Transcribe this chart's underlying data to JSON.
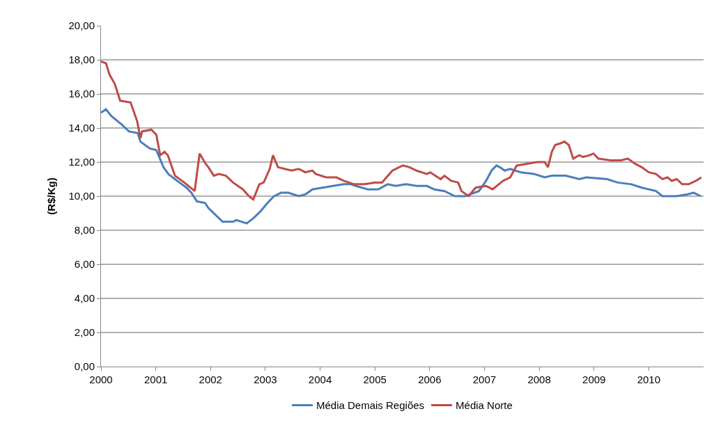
{
  "chart_data": {
    "type": "line",
    "ylabel": "(R$/Kg)",
    "x": [
      2000,
      2000.09,
      2000.19,
      2000.38,
      2000.51,
      2000.67,
      2000.72,
      2000.89,
      2001.01,
      2001.14,
      2001.23,
      2001.39,
      2001.56,
      2001.65,
      2001.75,
      2001.9,
      2001.96,
      2002.09,
      2002.22,
      2002.41,
      2002.47,
      2002.66,
      2002.78,
      2002.91,
      2003.04,
      2003.16,
      2003.29,
      2003.42,
      2003.61,
      2003.73,
      2003.86,
      2004.05,
      2004.24,
      2004.43,
      2004.56,
      2004.65,
      2004.87,
      2005.06,
      2005.23,
      2005.38,
      2005.57,
      2005.76,
      2005.95,
      2006.08,
      2006.27,
      2006.46,
      2006.65,
      2006.9,
      2007.03,
      2007.13,
      2007.22,
      2007.28,
      2007.37,
      2007.47,
      2007.66,
      2007.91,
      2008.1,
      2008.23,
      2008.48,
      2008.61,
      2008.73,
      2008.86,
      2009.24,
      2009.43,
      2009.68,
      2009.87,
      2010.13,
      2010.25,
      2010.51,
      2010.7,
      2010.82,
      2010.95
    ],
    "series": [
      {
        "name": "Média Demais Regiões",
        "color": "#4a7ebb",
        "values": [
          14.9,
          15.1,
          14.7,
          14.2,
          13.8,
          13.7,
          13.2,
          12.8,
          12.7,
          11.7,
          11.3,
          10.9,
          10.5,
          10.2,
          9.7,
          9.6,
          9.3,
          8.9,
          8.5,
          8.5,
          8.6,
          8.4,
          8.7,
          9.1,
          9.6,
          10.0,
          10.2,
          10.2,
          10.0,
          10.1,
          10.4,
          10.5,
          10.6,
          10.7,
          10.7,
          10.6,
          10.4,
          10.4,
          10.7,
          10.6,
          10.7,
          10.6,
          10.6,
          10.4,
          10.3,
          10.0,
          10.0,
          10.3,
          10.9,
          11.5,
          11.8,
          11.7,
          11.5,
          11.6,
          11.4,
          11.3,
          11.1,
          11.2,
          11.2,
          11.1,
          11.0,
          11.1,
          11.0,
          10.8,
          10.7,
          10.5,
          10.3,
          10.0,
          10.0,
          10.1,
          10.2,
          10.0
        ]
      },
      {
        "name": "Média Norte",
        "color": "#be4b48",
        "x": [
          2000,
          2000.09,
          2000.16,
          2000.25,
          2000.35,
          2000.54,
          2000.66,
          2000.72,
          2000.75,
          2000.92,
          2001.01,
          2001.08,
          2001.16,
          2001.22,
          2001.35,
          2001.52,
          2001.71,
          2001.8,
          2001.91,
          2001.96,
          2002.06,
          2002.15,
          2002.28,
          2002.41,
          2002.59,
          2002.7,
          2002.78,
          2002.89,
          2002.97,
          2003.08,
          2003.14,
          2003.23,
          2003.35,
          2003.48,
          2003.61,
          2003.73,
          2003.86,
          2003.92,
          2004.11,
          2004.3,
          2004.43,
          2004.62,
          2004.81,
          2005.0,
          2005.13,
          2005.32,
          2005.51,
          2005.63,
          2005.76,
          2005.95,
          2006.01,
          2006.2,
          2006.27,
          2006.39,
          2006.52,
          2006.58,
          2006.71,
          2006.84,
          2007.03,
          2007.15,
          2007.34,
          2007.47,
          2007.59,
          2007.78,
          2007.97,
          2008.1,
          2008.16,
          2008.23,
          2008.29,
          2008.39,
          2008.46,
          2008.54,
          2008.62,
          2008.73,
          2008.8,
          2008.92,
          2008.99,
          2009.08,
          2009.3,
          2009.49,
          2009.62,
          2009.75,
          2009.87,
          2010.0,
          2010.13,
          2010.25,
          2010.34,
          2010.42,
          2010.51,
          2010.61,
          2010.73,
          2010.86,
          2010.96
        ],
        "values": [
          17.9,
          17.8,
          17.1,
          16.6,
          15.6,
          15.5,
          14.4,
          13.4,
          13.8,
          13.9,
          13.6,
          12.4,
          12.6,
          12.4,
          11.2,
          10.8,
          10.3,
          12.5,
          11.9,
          11.7,
          11.2,
          11.3,
          11.2,
          10.8,
          10.4,
          10.0,
          9.8,
          10.7,
          10.8,
          11.6,
          12.4,
          11.7,
          11.6,
          11.5,
          11.6,
          11.4,
          11.5,
          11.3,
          11.1,
          11.1,
          10.9,
          10.7,
          10.7,
          10.8,
          10.8,
          11.5,
          11.8,
          11.7,
          11.5,
          11.3,
          11.4,
          11.0,
          11.2,
          10.9,
          10.8,
          10.3,
          10.0,
          10.5,
          10.6,
          10.4,
          10.9,
          11.1,
          11.8,
          11.9,
          12.0,
          12.0,
          11.7,
          12.6,
          13.0,
          13.1,
          13.2,
          13.0,
          12.2,
          12.4,
          12.3,
          12.4,
          12.5,
          12.2,
          12.1,
          12.1,
          12.2,
          11.9,
          11.7,
          11.4,
          11.3,
          11.0,
          11.1,
          10.9,
          11.0,
          10.7,
          10.7,
          10.9,
          11.1
        ]
      }
    ],
    "xlim": [
      2000,
      2011
    ],
    "xticks": [
      2000,
      2001,
      2002,
      2003,
      2004,
      2005,
      2006,
      2007,
      2008,
      2009,
      2010
    ],
    "ylim": [
      0,
      20
    ],
    "yticks": [
      {
        "value": 0,
        "label": "0,00"
      },
      {
        "value": 2,
        "label": "2,00"
      },
      {
        "value": 4,
        "label": "4,00"
      },
      {
        "value": 6,
        "label": "6,00"
      },
      {
        "value": 8,
        "label": "8,00"
      },
      {
        "value": 10,
        "label": "10,00"
      },
      {
        "value": 12,
        "label": "12,00"
      },
      {
        "value": 14,
        "label": "14,00"
      },
      {
        "value": 16,
        "label": "16,00"
      },
      {
        "value": 18,
        "label": "18,00"
      },
      {
        "value": 20,
        "label": "20,00"
      }
    ],
    "grid": "y",
    "legend": "bottom",
    "marker": "none",
    "line_style": "solid"
  }
}
